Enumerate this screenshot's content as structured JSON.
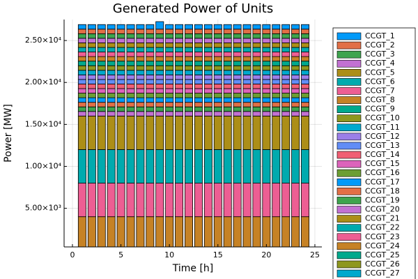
{
  "chart_data": {
    "type": "stacked_bar",
    "title": "Generated Power of Units",
    "x_label": "Time [h]",
    "y_label": "Power [MW]",
    "x": [
      1,
      2,
      3,
      4,
      5,
      6,
      7,
      8,
      9,
      10,
      11,
      12,
      13,
      14,
      15,
      16,
      17,
      18,
      19,
      20,
      21,
      22,
      23,
      24
    ],
    "xlim": [
      -0.86,
      25.72
    ],
    "xticks": [
      0,
      5,
      10,
      15,
      20,
      25
    ],
    "ylim": [
      400,
      27500
    ],
    "yticks": [
      {
        "value": 5000,
        "label": "5.00×10³"
      },
      {
        "value": 10000,
        "label": "1.00×10⁴"
      },
      {
        "value": 15000,
        "label": "1.50×10⁴"
      },
      {
        "value": 20000,
        "label": "2.00×10⁴"
      },
      {
        "value": 25000,
        "label": "2.50×10⁴"
      }
    ],
    "grid": true,
    "legend": "right",
    "series": [
      {
        "name": "CCGT_1",
        "color": "#009af9",
        "values": [
          545,
          545,
          545,
          545,
          545,
          545,
          545,
          545,
          895,
          545,
          545,
          545,
          545,
          545,
          545,
          545,
          545,
          545,
          545,
          545,
          545,
          545,
          545,
          545
        ]
      },
      {
        "name": "CCGT_2",
        "color": "#e26f46",
        "values": [
          545,
          545,
          545,
          545,
          545,
          545,
          545,
          545,
          545,
          545,
          545,
          545,
          545,
          545,
          545,
          545,
          545,
          545,
          545,
          545,
          545,
          545,
          545,
          545
        ]
      },
      {
        "name": "CCGT_3",
        "color": "#3ea44e",
        "values": [
          545,
          545,
          545,
          545,
          545,
          545,
          545,
          545,
          545,
          545,
          545,
          545,
          545,
          545,
          545,
          545,
          545,
          545,
          545,
          545,
          545,
          545,
          545,
          545
        ]
      },
      {
        "name": "CCGT_4",
        "color": "#c271d2",
        "values": [
          545,
          545,
          545,
          545,
          545,
          545,
          545,
          545,
          545,
          545,
          545,
          545,
          545,
          545,
          545,
          545,
          545,
          545,
          545,
          545,
          545,
          545,
          545,
          545
        ]
      },
      {
        "name": "CCGT_5",
        "color": "#ac8e18",
        "values": [
          545,
          545,
          545,
          545,
          545,
          545,
          545,
          545,
          545,
          545,
          545,
          545,
          545,
          545,
          545,
          545,
          545,
          545,
          545,
          545,
          545,
          545,
          545,
          545
        ]
      },
      {
        "name": "CCGT_6",
        "color": "#00aaae",
        "values": [
          545,
          545,
          545,
          545,
          545,
          545,
          545,
          545,
          545,
          545,
          545,
          545,
          545,
          545,
          545,
          545,
          545,
          545,
          545,
          545,
          545,
          545,
          545,
          545
        ]
      },
      {
        "name": "CCGT_7",
        "color": "#ed5e93",
        "values": [
          545,
          545,
          545,
          545,
          545,
          545,
          545,
          545,
          545,
          545,
          545,
          545,
          545,
          545,
          545,
          545,
          545,
          545,
          545,
          545,
          545,
          545,
          545,
          545
        ]
      },
      {
        "name": "CCGT_8",
        "color": "#c68225",
        "values": [
          545,
          545,
          545,
          545,
          545,
          545,
          545,
          545,
          545,
          545,
          545,
          545,
          545,
          545,
          545,
          545,
          545,
          545,
          545,
          545,
          545,
          545,
          545,
          545
        ]
      },
      {
        "name": "CCGT_9",
        "color": "#00a98d",
        "values": [
          545,
          545,
          545,
          545,
          545,
          545,
          545,
          545,
          545,
          545,
          545,
          545,
          545,
          545,
          545,
          545,
          545,
          545,
          545,
          545,
          545,
          545,
          545,
          545
        ]
      },
      {
        "name": "CCGT_10",
        "color": "#8e971e",
        "values": [
          545,
          545,
          545,
          545,
          545,
          545,
          545,
          545,
          545,
          545,
          545,
          545,
          545,
          545,
          545,
          545,
          545,
          545,
          545,
          545,
          545,
          545,
          545,
          545
        ]
      },
      {
        "name": "CCGT_11",
        "color": "#00a9cd",
        "values": [
          545,
          545,
          545,
          545,
          545,
          545,
          545,
          545,
          545,
          545,
          545,
          545,
          545,
          545,
          545,
          545,
          545,
          545,
          545,
          545,
          545,
          545,
          545,
          545
        ]
      },
      {
        "name": "CCGT_12",
        "color": "#9b7fe8",
        "values": [
          545,
          545,
          545,
          545,
          545,
          545,
          545,
          545,
          545,
          545,
          545,
          545,
          545,
          545,
          545,
          545,
          545,
          545,
          545,
          545,
          545,
          545,
          545,
          545
        ]
      },
      {
        "name": "CCGT_13",
        "color": "#618df6",
        "values": [
          545,
          545,
          545,
          545,
          545,
          545,
          545,
          545,
          545,
          545,
          545,
          545,
          545,
          545,
          545,
          545,
          545,
          545,
          545,
          545,
          545,
          545,
          545,
          545
        ]
      },
      {
        "name": "CCGT_14",
        "color": "#f05f73",
        "values": [
          545,
          545,
          545,
          545,
          545,
          545,
          545,
          545,
          545,
          545,
          545,
          545,
          545,
          545,
          545,
          545,
          545,
          545,
          545,
          545,
          545,
          545,
          545,
          545
        ]
      },
      {
        "name": "CCGT_15",
        "color": "#dc63bb",
        "values": [
          545,
          545,
          545,
          545,
          545,
          545,
          545,
          545,
          545,
          545,
          545,
          545,
          545,
          545,
          545,
          545,
          545,
          545,
          545,
          545,
          545,
          545,
          545,
          545
        ]
      },
      {
        "name": "CCGT_16",
        "color": "#6c9e33",
        "values": [
          545,
          545,
          545,
          545,
          545,
          545,
          545,
          545,
          545,
          545,
          545,
          545,
          545,
          545,
          545,
          545,
          545,
          545,
          545,
          545,
          545,
          545,
          545,
          545
        ]
      },
      {
        "name": "CCGT_17",
        "color": "#009af9",
        "values": [
          545,
          545,
          545,
          545,
          545,
          545,
          545,
          545,
          545,
          545,
          545,
          545,
          545,
          545,
          545,
          545,
          545,
          545,
          545,
          545,
          545,
          545,
          545,
          545
        ]
      },
      {
        "name": "CCGT_18",
        "color": "#e26f46",
        "values": [
          545,
          545,
          545,
          545,
          545,
          545,
          545,
          545,
          545,
          545,
          545,
          545,
          545,
          545,
          545,
          545,
          545,
          545,
          545,
          545,
          545,
          545,
          545,
          545
        ]
      },
      {
        "name": "CCGT_19",
        "color": "#3ea44e",
        "values": [
          545,
          545,
          545,
          545,
          545,
          545,
          545,
          545,
          545,
          545,
          545,
          545,
          545,
          545,
          545,
          545,
          545,
          545,
          545,
          545,
          545,
          545,
          545,
          545
        ]
      },
      {
        "name": "CCGT_20",
        "color": "#c271d2",
        "values": [
          545,
          545,
          545,
          545,
          545,
          545,
          545,
          545,
          545,
          545,
          545,
          545,
          545,
          545,
          545,
          545,
          545,
          545,
          545,
          545,
          545,
          545,
          545,
          545
        ]
      },
      {
        "name": "CCGT_21",
        "color": "#ac8e18",
        "values": [
          4000,
          4000,
          4000,
          4000,
          4000,
          4000,
          4000,
          4000,
          4000,
          4000,
          4000,
          4000,
          4000,
          4000,
          4000,
          4000,
          4000,
          4000,
          4000,
          4000,
          4000,
          4000,
          4000,
          4000
        ]
      },
      {
        "name": "CCGT_22",
        "color": "#00aaae",
        "values": [
          4000,
          4000,
          4000,
          4000,
          4000,
          4000,
          4000,
          4000,
          4000,
          4000,
          4000,
          4000,
          4000,
          4000,
          4000,
          4000,
          4000,
          4000,
          4000,
          4000,
          4000,
          4000,
          4000,
          4000
        ]
      },
      {
        "name": "CCGT_23",
        "color": "#ed5e93",
        "values": [
          4000,
          4000,
          4000,
          4000,
          4000,
          4000,
          4000,
          4000,
          4000,
          4000,
          4000,
          4000,
          4000,
          4000,
          4000,
          4000,
          4000,
          4000,
          4000,
          4000,
          4000,
          4000,
          4000,
          4000
        ]
      },
      {
        "name": "CCGT_24",
        "color": "#c68225",
        "values": [
          4000,
          4000,
          4000,
          4000,
          4000,
          4000,
          4000,
          4000,
          4000,
          4000,
          4000,
          4000,
          4000,
          4000,
          4000,
          4000,
          4000,
          4000,
          4000,
          4000,
          4000,
          4000,
          4000,
          4000
        ]
      },
      {
        "name": "CCGT_25",
        "color": "#00a98d",
        "values": [
          0,
          0,
          0,
          0,
          0,
          0,
          0,
          0,
          0,
          0,
          0,
          0,
          0,
          0,
          0,
          0,
          0,
          0,
          0,
          0,
          0,
          0,
          0,
          0
        ]
      },
      {
        "name": "CCGT_26",
        "color": "#8e971e",
        "values": [
          0,
          0,
          0,
          0,
          0,
          0,
          0,
          0,
          0,
          0,
          0,
          0,
          0,
          0,
          0,
          0,
          0,
          0,
          0,
          0,
          0,
          0,
          0,
          0
        ]
      },
      {
        "name": "CCGT_27",
        "color": "#00a9cd",
        "values": [
          0,
          0,
          0,
          0,
          0,
          0,
          0,
          0,
          0,
          0,
          0,
          0,
          0,
          0,
          0,
          0,
          0,
          0,
          0,
          0,
          0,
          0,
          0,
          0
        ]
      }
    ]
  }
}
